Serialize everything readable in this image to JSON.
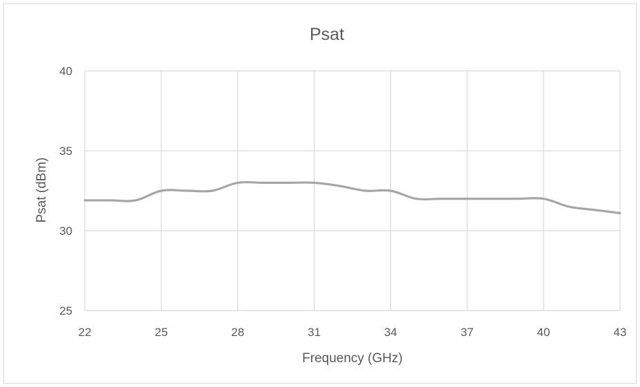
{
  "chart_data": {
    "type": "line",
    "title": "Psat",
    "xlabel": "Frequency (GHz)",
    "ylabel": "Psat (dBm)",
    "xlim": [
      22,
      43
    ],
    "ylim": [
      25,
      40
    ],
    "x_ticks": [
      22,
      25,
      28,
      31,
      34,
      37,
      40,
      43
    ],
    "y_ticks": [
      25,
      30,
      35,
      40
    ],
    "grid": true,
    "legend": "none",
    "series": [
      {
        "color": "#a6a6a6",
        "x": [
          22,
          23,
          24,
          25,
          26,
          27,
          28,
          29,
          30,
          31,
          32,
          33,
          34,
          35,
          36,
          37,
          38,
          39,
          40,
          41,
          42,
          43
        ],
        "y": [
          31.9,
          31.9,
          31.9,
          32.5,
          32.5,
          32.5,
          33.0,
          33.0,
          33.0,
          33.0,
          32.8,
          32.5,
          32.5,
          32.0,
          32.0,
          32.0,
          32.0,
          32.0,
          32.0,
          31.5,
          31.3,
          31.1
        ]
      }
    ]
  }
}
